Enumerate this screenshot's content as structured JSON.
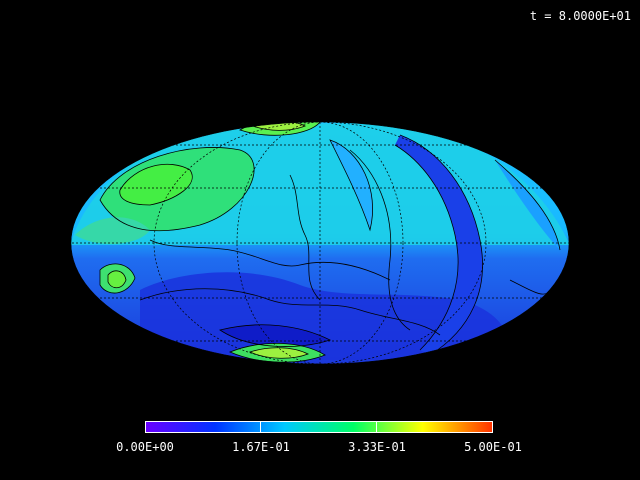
{
  "time_label": "t = 8.0000E+01",
  "colorbar": {
    "labels": [
      "0.00E+00",
      "1.67E-01",
      "3.33E-01",
      "5.00E-01"
    ],
    "colors": [
      "#6a00ff",
      "#0033ff",
      "#00c8ff",
      "#00ff66",
      "#ffff00",
      "#ff3300"
    ]
  },
  "colors": {
    "background": "#000000",
    "low": "#2233e0",
    "mid": "#16b8ff",
    "high": "#22e060",
    "contour": "#000000",
    "grid": "#111111"
  }
}
